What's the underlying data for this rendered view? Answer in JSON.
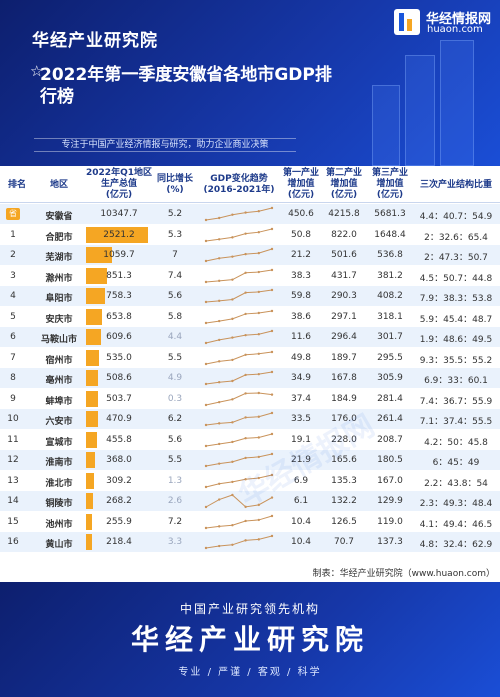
{
  "header": {
    "brand": "华经产业研究院",
    "logo_name": "华经情报网",
    "logo_domain": "huaon.com",
    "title": "2022年第一季度安徽省各地市GDP排行榜",
    "slogan": "专注于中国产业经济情报与研究，助力企业商业决策",
    "colors": {
      "primary": "#1637a8",
      "accent": "#f5a623"
    }
  },
  "chart_data": {
    "type": "table",
    "title": "2022年第一季度安徽省各地市GDP排行榜",
    "columns": [
      "排名",
      "地区",
      "2022年Q1地区生产总值(亿元)",
      "同比增长(%)",
      "GDP变化趋势(2016-2021年)",
      "第一产业增加值(亿元)",
      "第二产业增加值(亿元)",
      "第三产业增加值(亿元)",
      "三次产业结构比重"
    ],
    "rows": [
      {
        "rank": "省",
        "region": "安徽省",
        "gdp": 10347.7,
        "growth": "5.2",
        "p1": "450.6",
        "p2": "4215.8",
        "p3": "5681.3",
        "structure": "4.4：40.7：54.9",
        "trend": [
          27018,
          29676,
          34010,
          36846,
          38681,
          42959
        ]
      },
      {
        "rank": "1",
        "region": "合肥市",
        "gdp": 2521.2,
        "growth": "5.3",
        "p1": "50.8",
        "p2": "822.0",
        "p3": "1648.4",
        "structure": "2：32.6：65.4",
        "trend": [
          6274,
          7003,
          7823,
          9409,
          10046,
          11413
        ]
      },
      {
        "rank": "2",
        "region": "芜湖市",
        "gdp": 1059.7,
        "growth": "7",
        "p1": "21.2",
        "p2": "501.6",
        "p3": "536.8",
        "structure": "2：47.3：50.7",
        "trend": [
          2700,
          3065,
          3279,
          3618,
          3753,
          4303
        ]
      },
      {
        "rank": "3",
        "region": "滁州市",
        "gdp": 851.3,
        "growth": "7.4",
        "p1": "38.3",
        "p2": "431.7",
        "p3": "381.2",
        "structure": "4.5：50.7：44.8",
        "trend": [
          1423,
          1608,
          1802,
          2909,
          3032,
          3362
        ]
      },
      {
        "rank": "4",
        "region": "阜阳市",
        "gdp": 758.3,
        "growth": "5.6",
        "p1": "59.8",
        "p2": "290.3",
        "p3": "408.2",
        "structure": "7.9：38.3：53.8",
        "trend": [
          1411,
          1571,
          1760,
          2706,
          2805,
          3072
        ]
      },
      {
        "rank": "5",
        "region": "安庆市",
        "gdp": 653.8,
        "growth": "5.8",
        "p1": "38.6",
        "p2": "297.1",
        "p3": "318.1",
        "structure": "5.9：45.4：48.7",
        "trend": [
          1531,
          1708,
          1918,
          2381,
          2468,
          2656
        ]
      },
      {
        "rank": "6",
        "region": "马鞍山市",
        "gdp": 609.6,
        "growth": "4.4",
        "p1": "11.6",
        "p2": "296.4",
        "p3": "301.7",
        "structure": "1.9：48.6：49.5",
        "trend": [
          1493,
          1738,
          1918,
          2111,
          2187,
          2439
        ]
      },
      {
        "rank": "7",
        "region": "宿州市",
        "gdp": 535.0,
        "growth": "5.5",
        "p1": "49.8",
        "p2": "189.7",
        "p3": "295.5",
        "structure": "9.3：35.5：55.2",
        "trend": [
          1351,
          1531,
          1630,
          1978,
          2045,
          2167
        ]
      },
      {
        "rank": "8",
        "region": "亳州市",
        "gdp": 508.6,
        "growth": "4.9",
        "p1": "34.9",
        "p2": "167.8",
        "p3": "305.9",
        "structure": "6.9：33：60.1",
        "trend": [
          1045,
          1184,
          1277,
          1749,
          1806,
          1973
        ]
      },
      {
        "rank": "9",
        "region": "蚌埠市",
        "gdp": 503.7,
        "growth": "0.3",
        "p1": "37.4",
        "p2": "184.9",
        "p3": "281.4",
        "structure": "7.4：36.7：55.9",
        "trend": [
          1385,
          1550,
          1714,
          2058,
          2083,
          1989
        ]
      },
      {
        "rank": "10",
        "region": "六安市",
        "gdp": 470.9,
        "growth": "6.2",
        "p1": "33.5",
        "p2": "176.0",
        "p3": "261.4",
        "structure": "7.1：37.4：55.5",
        "trend": [
          1108,
          1218,
          1288,
          1620,
          1669,
          1923
        ]
      },
      {
        "rank": "11",
        "region": "宣城市",
        "gdp": 455.8,
        "growth": "5.6",
        "p1": "19.1",
        "p2": "228.0",
        "p3": "208.7",
        "structure": "4.2：50：45.8",
        "trend": [
          1057,
          1189,
          1317,
          1561,
          1607,
          1834
        ]
      },
      {
        "rank": "12",
        "region": "淮南市",
        "gdp": 368.0,
        "growth": "5.5",
        "p1": "21.9",
        "p2": "165.6",
        "p3": "180.5",
        "structure": "6：45：49",
        "trend": [
          963,
          1060,
          1134,
          1296,
          1337,
          1457
        ]
      },
      {
        "rank": "13",
        "region": "淮北市",
        "gdp": 309.2,
        "growth": "1.3",
        "p1": "6.9",
        "p2": "135.3",
        "p3": "167.0",
        "structure": "2.2：43.8：54",
        "trend": [
          808,
          920,
          985,
          1077,
          1119,
          1224
        ]
      },
      {
        "rank": "14",
        "region": "铜陵市",
        "gdp": 268.2,
        "growth": "2.6",
        "p1": "6.1",
        "p2": "132.2",
        "p3": "129.9",
        "structure": "2.3：49.3：48.4",
        "trend": [
          957,
          1122,
          1222,
          960,
          1004,
          1165
        ]
      },
      {
        "rank": "15",
        "region": "池州市",
        "gdp": 255.9,
        "growth": "7.2",
        "p1": "10.4",
        "p2": "126.5",
        "p3": "119.0",
        "structure": "4.1：49.4：46.5",
        "trend": [
          589,
          645,
          685,
          832,
          868,
          1004
        ]
      },
      {
        "rank": "16",
        "region": "黄山市",
        "gdp": 218.4,
        "growth": "3.3",
        "p1": "10.4",
        "p2": "70.7",
        "p3": "137.3",
        "structure": "4.8：32.4：62.9",
        "trend": [
          576,
          638,
          678,
          818,
          850,
          957
        ]
      }
    ]
  },
  "headers": {
    "rank": "排名",
    "region": "地区",
    "gdp": [
      "2022年Q1地区",
      "生产总值",
      "(亿元)"
    ],
    "growth": [
      "同比增长",
      "(%)"
    ],
    "trend": [
      "GDP变化趋势",
      "(2016-2021年)"
    ],
    "p1": [
      "第一产业",
      "增加值",
      "(亿元)"
    ],
    "p2": [
      "第二产业",
      "增加值",
      "(亿元)"
    ],
    "p3": [
      "第三产业",
      "增加值",
      "(亿元)"
    ],
    "structure": "三次产业结构比重"
  },
  "watermark": "华经情报网",
  "source": "制表：华经产业研究院（www.huaon.com）",
  "footer": {
    "top": "中国产业研究领先机构",
    "big": "华经产业研究院",
    "tags": "专业 / 严谨 / 客观 / 科学"
  }
}
